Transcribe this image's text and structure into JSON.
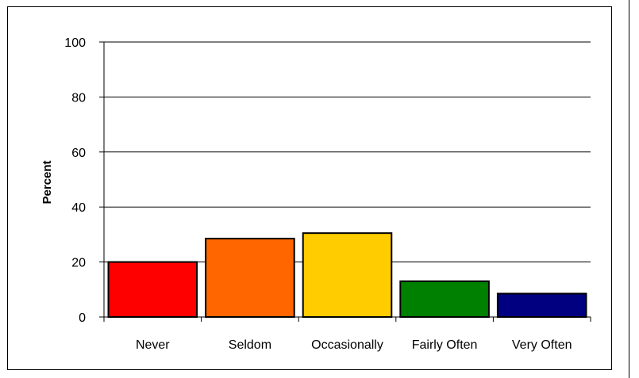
{
  "chart_data": {
    "type": "bar",
    "title": "",
    "xlabel": "",
    "ylabel": "Percent",
    "categories": [
      "Never",
      "Seldom",
      "Occasionally",
      "Fairly Often",
      "Very Often"
    ],
    "values": [
      20,
      28.5,
      30.5,
      13,
      8.5
    ],
    "colors": [
      "#ff0000",
      "#ff6600",
      "#ffcc00",
      "#008000",
      "#000080"
    ],
    "ylim": [
      0,
      100
    ],
    "yticks": [
      0,
      20,
      40,
      60,
      80,
      100
    ],
    "grid": true,
    "legend": "none"
  }
}
